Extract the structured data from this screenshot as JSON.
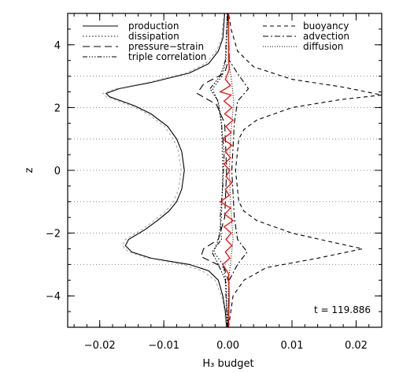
{
  "chart_data": {
    "type": "line",
    "title": "",
    "xlabel": "H₃ budget",
    "ylabel": "z",
    "xlim": [
      -0.025,
      0.024
    ],
    "ylim": [
      -5,
      5
    ],
    "x_ticks": [
      -0.02,
      -0.01,
      0.0,
      0.01,
      0.02
    ],
    "x_tick_labels": [
      "−0.02",
      "−0.01",
      "0.00",
      "0.01",
      "0.02"
    ],
    "y_ticks": [
      -4,
      -2,
      0,
      2,
      4
    ],
    "y_tick_labels": [
      "−4",
      "−2",
      "0",
      "2",
      "4"
    ],
    "horizontal_reference_lines": [
      -3,
      -2,
      -1,
      0,
      1,
      2,
      3
    ],
    "annotation": "t = 119.886",
    "legend_left": [
      "production",
      "dissipation",
      "pressure−strain",
      "triple correlation"
    ],
    "legend_right": [
      "buoyancy",
      "advection",
      "diffusion"
    ],
    "series": [
      {
        "name": "production",
        "color": "#000000",
        "dash": "solid",
        "points": [
          [
            -0.0002,
            -5
          ],
          [
            -0.0004,
            -4.5
          ],
          [
            -0.0008,
            -4
          ],
          [
            -0.0015,
            -3.5
          ],
          [
            -0.003,
            -3.2
          ],
          [
            -0.006,
            -3.0
          ],
          [
            -0.012,
            -2.8
          ],
          [
            -0.015,
            -2.6
          ],
          [
            -0.016,
            -2.4
          ],
          [
            -0.0155,
            -2.2
          ],
          [
            -0.013,
            -1.9
          ],
          [
            -0.011,
            -1.6
          ],
          [
            -0.0092,
            -1.3
          ],
          [
            -0.008,
            -1.0
          ],
          [
            -0.0072,
            -0.6
          ],
          [
            -0.0068,
            0
          ],
          [
            -0.0072,
            0.6
          ],
          [
            -0.008,
            1.0
          ],
          [
            -0.0094,
            1.4
          ],
          [
            -0.012,
            1.8
          ],
          [
            -0.0145,
            2.05
          ],
          [
            -0.0165,
            2.2
          ],
          [
            -0.0185,
            2.35
          ],
          [
            -0.019,
            2.45
          ],
          [
            -0.017,
            2.6
          ],
          [
            -0.012,
            2.8
          ],
          [
            -0.006,
            3.1
          ],
          [
            -0.003,
            3.4
          ],
          [
            -0.0015,
            3.8
          ],
          [
            -0.0008,
            4.2
          ],
          [
            -0.0005,
            5
          ]
        ]
      },
      {
        "name": "production (earlier)",
        "color": "#aaaaaa",
        "dash": "3,3",
        "points": [
          [
            -0.0003,
            -5
          ],
          [
            -0.0005,
            -4.5
          ],
          [
            -0.001,
            -4
          ],
          [
            -0.002,
            -3.5
          ],
          [
            -0.004,
            -3.2
          ],
          [
            -0.007,
            -3.0
          ],
          [
            -0.0125,
            -2.8
          ],
          [
            -0.0155,
            -2.6
          ],
          [
            -0.0165,
            -2.4
          ],
          [
            -0.016,
            -2.2
          ],
          [
            -0.0135,
            -1.9
          ],
          [
            -0.0115,
            -1.6
          ],
          [
            -0.0097,
            -1.3
          ],
          [
            -0.0085,
            -1.0
          ],
          [
            -0.0077,
            -0.6
          ],
          [
            -0.0073,
            0
          ],
          [
            -0.0077,
            0.6
          ],
          [
            -0.0085,
            1.0
          ],
          [
            -0.0099,
            1.4
          ],
          [
            -0.0125,
            1.8
          ],
          [
            -0.015,
            2.05
          ],
          [
            -0.017,
            2.2
          ],
          [
            -0.019,
            2.35
          ],
          [
            -0.0195,
            2.45
          ],
          [
            -0.0175,
            2.6
          ],
          [
            -0.0125,
            2.8
          ],
          [
            -0.0065,
            3.1
          ],
          [
            -0.0035,
            3.4
          ],
          [
            -0.0018,
            3.8
          ],
          [
            -0.001,
            4.2
          ],
          [
            -0.0006,
            5
          ]
        ]
      },
      {
        "name": "dissipation",
        "color": "#000000",
        "dash": "1.5,2.5",
        "points": [
          [
            -0.0001,
            -5
          ],
          [
            -0.0003,
            -3.5
          ],
          [
            -0.0008,
            -3.0
          ],
          [
            -0.0022,
            -2.6
          ],
          [
            -0.0015,
            -2.2
          ],
          [
            -0.001,
            -1.5
          ],
          [
            -0.0008,
            0
          ],
          [
            -0.001,
            1.5
          ],
          [
            -0.0016,
            2.2
          ],
          [
            -0.0024,
            2.6
          ],
          [
            -0.0009,
            3.0
          ],
          [
            -0.0003,
            3.5
          ],
          [
            -0.0001,
            5
          ]
        ]
      },
      {
        "name": "pressure−strain",
        "color": "#000000",
        "dash": "9,5",
        "points": [
          [
            0.0,
            -5
          ],
          [
            0.0002,
            -3.6
          ],
          [
            -0.0006,
            -3.1
          ],
          [
            -0.0042,
            -2.75
          ],
          [
            -0.0038,
            -2.5
          ],
          [
            -0.0015,
            -2.2
          ],
          [
            -0.0005,
            -1.5
          ],
          [
            -0.0002,
            0
          ],
          [
            -0.0005,
            1.5
          ],
          [
            -0.0018,
            2.1
          ],
          [
            -0.0048,
            2.45
          ],
          [
            -0.0038,
            2.75
          ],
          [
            -0.0005,
            3.1
          ],
          [
            0.0002,
            3.6
          ],
          [
            0.0,
            5
          ]
        ]
      },
      {
        "name": "triple correlation",
        "color": "#000000",
        "dash": "6,2,1.5,2,1.5,2,1.5,2",
        "points": [
          [
            -0.0001,
            -5
          ],
          [
            -0.0004,
            -3.5
          ],
          [
            -0.0015,
            -3.0
          ],
          [
            -0.0025,
            -2.6
          ],
          [
            -0.001,
            -2.2
          ],
          [
            -0.0012,
            -1.5
          ],
          [
            -0.0008,
            -0.5
          ],
          [
            -0.0006,
            0.5
          ],
          [
            -0.001,
            1.5
          ],
          [
            -0.0015,
            2.2
          ],
          [
            -0.0028,
            2.6
          ],
          [
            -0.0012,
            3.0
          ],
          [
            -0.0004,
            3.5
          ],
          [
            -0.0001,
            5
          ]
        ]
      },
      {
        "name": "buoyancy",
        "color": "#000000",
        "dash": "5,4",
        "points": [
          [
            0.0001,
            -5
          ],
          [
            0.0008,
            -4
          ],
          [
            0.0025,
            -3.5
          ],
          [
            0.006,
            -3.1
          ],
          [
            0.014,
            -2.8
          ],
          [
            0.021,
            -2.5
          ],
          [
            0.0165,
            -2.3
          ],
          [
            0.01,
            -2.0
          ],
          [
            0.0045,
            -1.6
          ],
          [
            0.0025,
            -1.3
          ],
          [
            0.0017,
            -1.0
          ],
          [
            0.0012,
            0
          ],
          [
            0.0017,
            1.0
          ],
          [
            0.0025,
            1.3
          ],
          [
            0.0045,
            1.6
          ],
          [
            0.01,
            2.0
          ],
          [
            0.0175,
            2.25
          ],
          [
            0.024,
            2.4
          ],
          [
            0.018,
            2.65
          ],
          [
            0.01,
            2.9
          ],
          [
            0.004,
            3.3
          ],
          [
            0.0015,
            3.8
          ],
          [
            0.0005,
            4.5
          ],
          [
            0.0001,
            5
          ]
        ]
      },
      {
        "name": "advection",
        "color": "#000000",
        "dash": "7,3,2,3",
        "points": [
          [
            0.0,
            -5
          ],
          [
            0.0002,
            -3.5
          ],
          [
            0.0015,
            -3.0
          ],
          [
            0.003,
            -2.6
          ],
          [
            0.0015,
            -2.2
          ],
          [
            0.001,
            -1.5
          ],
          [
            0.0006,
            0
          ],
          [
            0.001,
            1.5
          ],
          [
            0.0015,
            2.2
          ],
          [
            0.0032,
            2.6
          ],
          [
            0.0018,
            3.0
          ],
          [
            0.0002,
            3.5
          ],
          [
            0.0,
            5
          ]
        ]
      },
      {
        "name": "diffusion",
        "color": "#000000",
        "dash": "1,2",
        "points": [
          [
            0.0,
            -5
          ],
          [
            0.0001,
            -3.5
          ],
          [
            0.0005,
            -2.8
          ],
          [
            0.0008,
            -2.2
          ],
          [
            0.0004,
            -1.0
          ],
          [
            0.0002,
            0
          ],
          [
            0.0004,
            1.0
          ],
          [
            0.0009,
            2.2
          ],
          [
            0.0006,
            2.8
          ],
          [
            0.0001,
            3.5
          ],
          [
            0.0,
            5
          ]
        ]
      },
      {
        "name": "residual",
        "color": "#e0201b",
        "dash": "solid",
        "points": [
          [
            0.0001,
            -5
          ],
          [
            0.0002,
            -4
          ],
          [
            0.0001,
            -3.3
          ],
          [
            -0.0008,
            -3.0
          ],
          [
            0.0003,
            -2.8
          ],
          [
            -0.0004,
            -2.6
          ],
          [
            0.0006,
            -2.4
          ],
          [
            -0.0003,
            -2.2
          ],
          [
            0.0005,
            -2.0
          ],
          [
            -0.0006,
            -1.8
          ],
          [
            0.0008,
            -1.6
          ],
          [
            -0.0005,
            -1.4
          ],
          [
            0.0004,
            -1.2
          ],
          [
            -0.0012,
            -1.0
          ],
          [
            0.0002,
            -0.8
          ],
          [
            -0.0004,
            -0.6
          ],
          [
            0.0006,
            -0.4
          ],
          [
            -0.0003,
            -0.2
          ],
          [
            0.0003,
            0
          ],
          [
            -0.0006,
            0.2
          ],
          [
            0.0004,
            0.4
          ],
          [
            -0.0004,
            0.6
          ],
          [
            0.0006,
            0.8
          ],
          [
            -0.0008,
            1.0
          ],
          [
            0.0005,
            1.2
          ],
          [
            -0.0003,
            1.4
          ],
          [
            0.0008,
            1.6
          ],
          [
            -0.0005,
            1.8
          ],
          [
            0.0006,
            2.0
          ],
          [
            -0.0006,
            2.2
          ],
          [
            0.0005,
            2.4
          ],
          [
            -0.0012,
            2.5
          ],
          [
            0.0004,
            2.7
          ],
          [
            -0.0004,
            2.9
          ],
          [
            0.0002,
            3.2
          ],
          [
            0.0001,
            3.6
          ],
          [
            0.0001,
            4.5
          ],
          [
            0.0001,
            5
          ]
        ]
      }
    ]
  }
}
